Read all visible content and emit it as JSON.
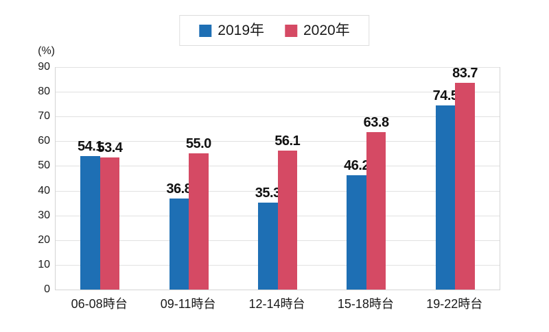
{
  "chart_data": {
    "type": "bar",
    "unit_label": "(%)",
    "categories": [
      "06-08時台",
      "09-11時台",
      "12-14時台",
      "15-18時台",
      "19-22時台"
    ],
    "series": [
      {
        "name": "2019年",
        "color": "#1E6FB4",
        "values": [
          54.1,
          36.8,
          35.3,
          46.2,
          74.5
        ]
      },
      {
        "name": "2020年",
        "color": "#D54A64",
        "values": [
          53.4,
          55.0,
          56.1,
          63.8,
          83.7
        ]
      }
    ],
    "value_labels": [
      "54.1",
      "36.8",
      "35.3",
      "46.2",
      "74.5",
      "53.4",
      "55.0",
      "56.1",
      "63.8",
      "83.7"
    ],
    "ylim": [
      0,
      90
    ],
    "yticks": [
      0,
      10,
      20,
      30,
      40,
      50,
      60,
      70,
      80,
      90
    ],
    "grid": true,
    "legend_position": "top-center"
  },
  "colors": {
    "background": "#FFFFFF",
    "grid": "#E1E1E1",
    "axis_border": "#D4D4D4",
    "text": "#1A1A1A",
    "legend_border": "#DDDDDD"
  }
}
